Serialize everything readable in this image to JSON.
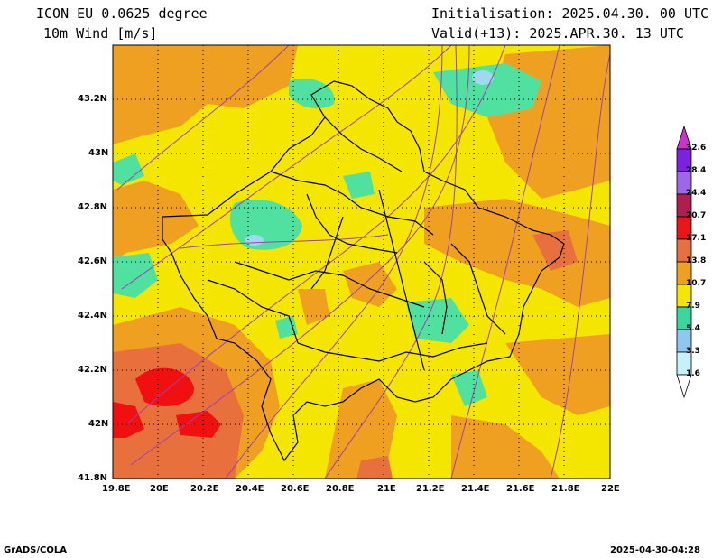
{
  "header": {
    "model": "ICON EU 0.0625 degree",
    "variable": "10m Wind [m/s]",
    "initialisation": "Initialisation: 2025.04.30. 00 UTC",
    "valid": "Valid(+13): 2025.APR.30. 13 UTC"
  },
  "axes": {
    "lon_ticks": [
      "19.8E",
      "20E",
      "20.2E",
      "20.4E",
      "20.6E",
      "20.8E",
      "21E",
      "21.2E",
      "21.4E",
      "21.6E",
      "21.8E",
      "22E"
    ],
    "lat_ticks": [
      "43.2N",
      "43N",
      "42.8N",
      "42.6N",
      "42.4N",
      "42.2N",
      "42N",
      "41.8N"
    ]
  },
  "colorbar": {
    "levels": [
      "32.6",
      "28.4",
      "24.4",
      "20.7",
      "17.1",
      "13.8",
      "10.7",
      "7.9",
      "5.4",
      "3.3",
      "1.6"
    ],
    "colors": [
      "#cc33cc",
      "#7a22e0",
      "#a066e8",
      "#b01e50",
      "#e81818",
      "#e87040",
      "#f5d800",
      "#3ad6a0",
      "#8ec8f0",
      "#c8f0f8",
      "#ffffff"
    ]
  },
  "map_colors": {
    "yellow": "#f5e600",
    "orange": "#f0a020",
    "dark_orange": "#e8703c",
    "red": "#f01010",
    "green": "#50e0a0",
    "light_blue": "#a0d8f0",
    "streamline": "#a040b0",
    "border": "#000000"
  },
  "footer": {
    "left": "GrADS/COLA",
    "right": "2025-04-30-04:28"
  }
}
